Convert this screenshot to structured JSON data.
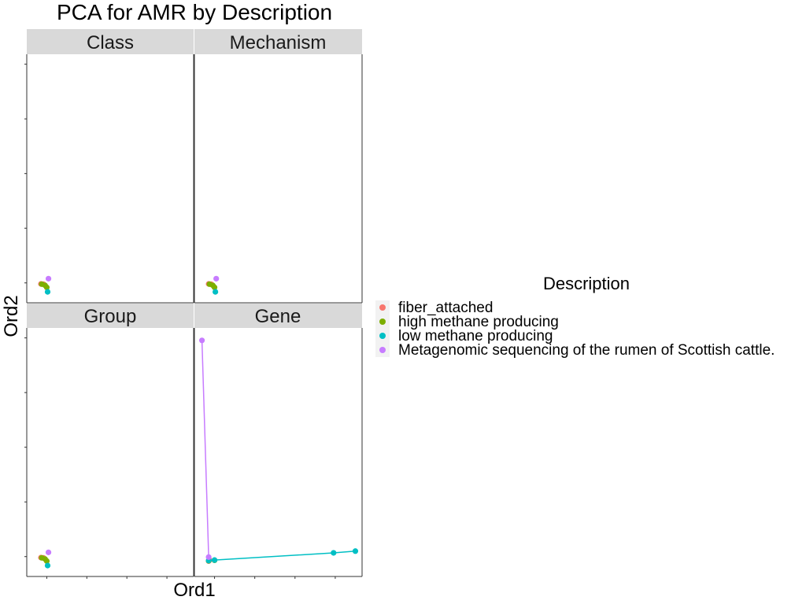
{
  "chart_data": {
    "type": "scatter",
    "title": "PCA for AMR by Description",
    "xlabel": "Ord1",
    "ylabel": "Ord2",
    "facets": [
      "Class",
      "Mechanism",
      "Group",
      "Gene"
    ],
    "xlim": [
      0,
      1
    ],
    "ylim": [
      0,
      1
    ],
    "grid": false,
    "legend": {
      "title": "Description",
      "placement": "right",
      "entries": [
        {
          "name": "fiber_attached",
          "color": "#F8766D"
        },
        {
          "name": "high methane producing",
          "color": "#7CAE00"
        },
        {
          "name": "low methane producing",
          "color": "#00BFC4"
        },
        {
          "name": "Metagenomic sequencing of the rumen of Scottish cattle.",
          "color": "#C77CFF"
        }
      ]
    },
    "series": [
      {
        "facet": "Class",
        "group": "fiber_attached",
        "points": [
          [
            0.085,
            0.076
          ],
          [
            0.1,
            0.075
          ]
        ]
      },
      {
        "facet": "Class",
        "group": "high methane producing",
        "points": [
          [
            0.09,
            0.075
          ],
          [
            0.11,
            0.07
          ],
          [
            0.12,
            0.062
          ]
        ]
      },
      {
        "facet": "Class",
        "group": "low methane producing",
        "points": [
          [
            0.125,
            0.044
          ]
        ]
      },
      {
        "facet": "Class",
        "group": "Metagenomic sequencing of the rumen of Scottish cattle.",
        "points": [
          [
            0.13,
            0.097
          ]
        ]
      },
      {
        "facet": "Mechanism",
        "group": "fiber_attached",
        "points": [
          [
            0.085,
            0.076
          ],
          [
            0.1,
            0.075
          ]
        ]
      },
      {
        "facet": "Mechanism",
        "group": "high methane producing",
        "points": [
          [
            0.09,
            0.075
          ],
          [
            0.11,
            0.07
          ],
          [
            0.12,
            0.062
          ]
        ]
      },
      {
        "facet": "Mechanism",
        "group": "low methane producing",
        "points": [
          [
            0.125,
            0.044
          ]
        ]
      },
      {
        "facet": "Mechanism",
        "group": "Metagenomic sequencing of the rumen of Scottish cattle.",
        "points": [
          [
            0.13,
            0.097
          ]
        ]
      },
      {
        "facet": "Group",
        "group": "fiber_attached",
        "points": [
          [
            0.085,
            0.076
          ],
          [
            0.1,
            0.075
          ]
        ]
      },
      {
        "facet": "Group",
        "group": "high methane producing",
        "points": [
          [
            0.09,
            0.075
          ],
          [
            0.11,
            0.07
          ],
          [
            0.12,
            0.062
          ]
        ]
      },
      {
        "facet": "Group",
        "group": "low methane producing",
        "points": [
          [
            0.125,
            0.044
          ]
        ]
      },
      {
        "facet": "Group",
        "group": "Metagenomic sequencing of the rumen of Scottish cattle.",
        "points": [
          [
            0.13,
            0.097
          ]
        ]
      },
      {
        "facet": "Gene",
        "group": "fiber_attached",
        "points": [
          [
            0.085,
            0.062
          ],
          [
            0.09,
            0.066
          ]
        ]
      },
      {
        "facet": "Gene",
        "group": "high methane producing",
        "points": [
          [
            0.085,
            0.063
          ],
          [
            0.12,
            0.065
          ]
        ]
      },
      {
        "facet": "Gene",
        "group": "low methane producing",
        "connect": true,
        "points": [
          [
            0.085,
            0.064
          ],
          [
            0.12,
            0.066
          ],
          [
            0.83,
            0.095
          ],
          [
            0.96,
            0.102
          ]
        ]
      },
      {
        "facet": "Gene",
        "group": "Metagenomic sequencing of the rumen of Scottish cattle.",
        "connect": true,
        "points": [
          [
            0.045,
            0.95
          ],
          [
            0.085,
            0.078
          ]
        ]
      }
    ]
  }
}
